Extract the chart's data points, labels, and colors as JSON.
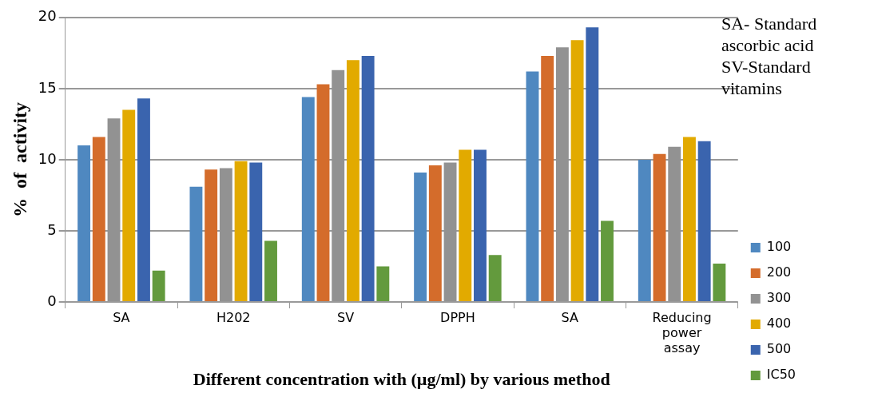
{
  "chart_data": {
    "type": "bar",
    "ylabel": "%  of  activity",
    "xlabel": "Different concentration with (µg/ml) by various method",
    "categories": [
      "SA",
      "H202",
      "SV",
      "DPPH",
      "SA",
      "Reducing power assay"
    ],
    "series": [
      {
        "name": "100",
        "color": "#4f88c0",
        "values": [
          11.0,
          8.1,
          14.4,
          9.1,
          16.2,
          10.0
        ]
      },
      {
        "name": "200",
        "color": "#d46c2b",
        "values": [
          11.6,
          9.3,
          15.3,
          9.6,
          17.3,
          10.4
        ]
      },
      {
        "name": "300",
        "color": "#929292",
        "values": [
          12.9,
          9.4,
          16.3,
          9.8,
          17.9,
          10.9
        ]
      },
      {
        "name": "400",
        "color": "#e2aa00",
        "values": [
          13.5,
          9.9,
          17.0,
          10.7,
          18.4,
          11.6
        ]
      },
      {
        "name": "500",
        "color": "#3a64ae",
        "values": [
          14.3,
          9.8,
          17.3,
          10.7,
          19.3,
          11.3
        ]
      },
      {
        "name": "IC50",
        "color": "#639a3d",
        "values": [
          2.2,
          4.3,
          2.5,
          3.3,
          5.7,
          2.7
        ]
      }
    ],
    "ylim": [
      0,
      20
    ],
    "yticks": [
      0,
      5,
      10,
      15,
      20
    ],
    "grid": "y",
    "legend": "right",
    "annotations": [
      "SA- Standard ascorbic acid",
      "SV-Standard  vitamins"
    ]
  }
}
